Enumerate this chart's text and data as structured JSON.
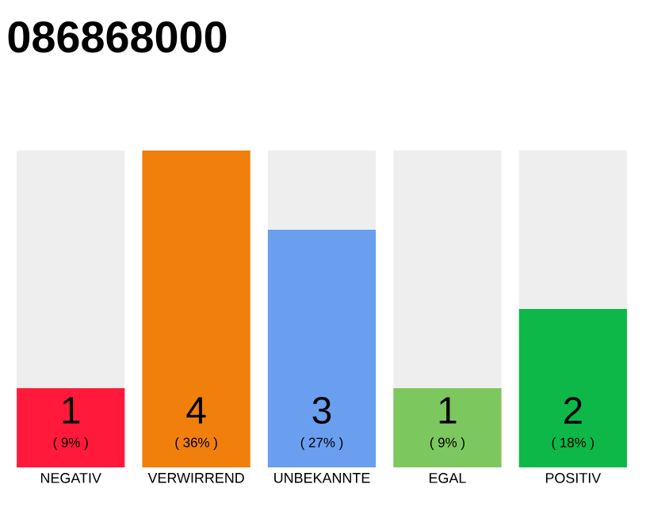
{
  "chart_data": {
    "type": "bar",
    "title": "086868000",
    "categories": [
      "NEGATIV",
      "VERWIRREND",
      "UNBEKANNTE",
      "EGAL",
      "POSITIV"
    ],
    "values": [
      1,
      4,
      3,
      1,
      2
    ],
    "colors": [
      "#ff1a3c",
      "#f07f0c",
      "#6a9ff0",
      "#7dc85e",
      "#0db848"
    ],
    "ylim": [
      0,
      4
    ],
    "data_labels": true,
    "annotations": [
      "( 9% )",
      "( 36% )",
      "( 27% )",
      "( 9% )",
      "( 18% )"
    ]
  }
}
